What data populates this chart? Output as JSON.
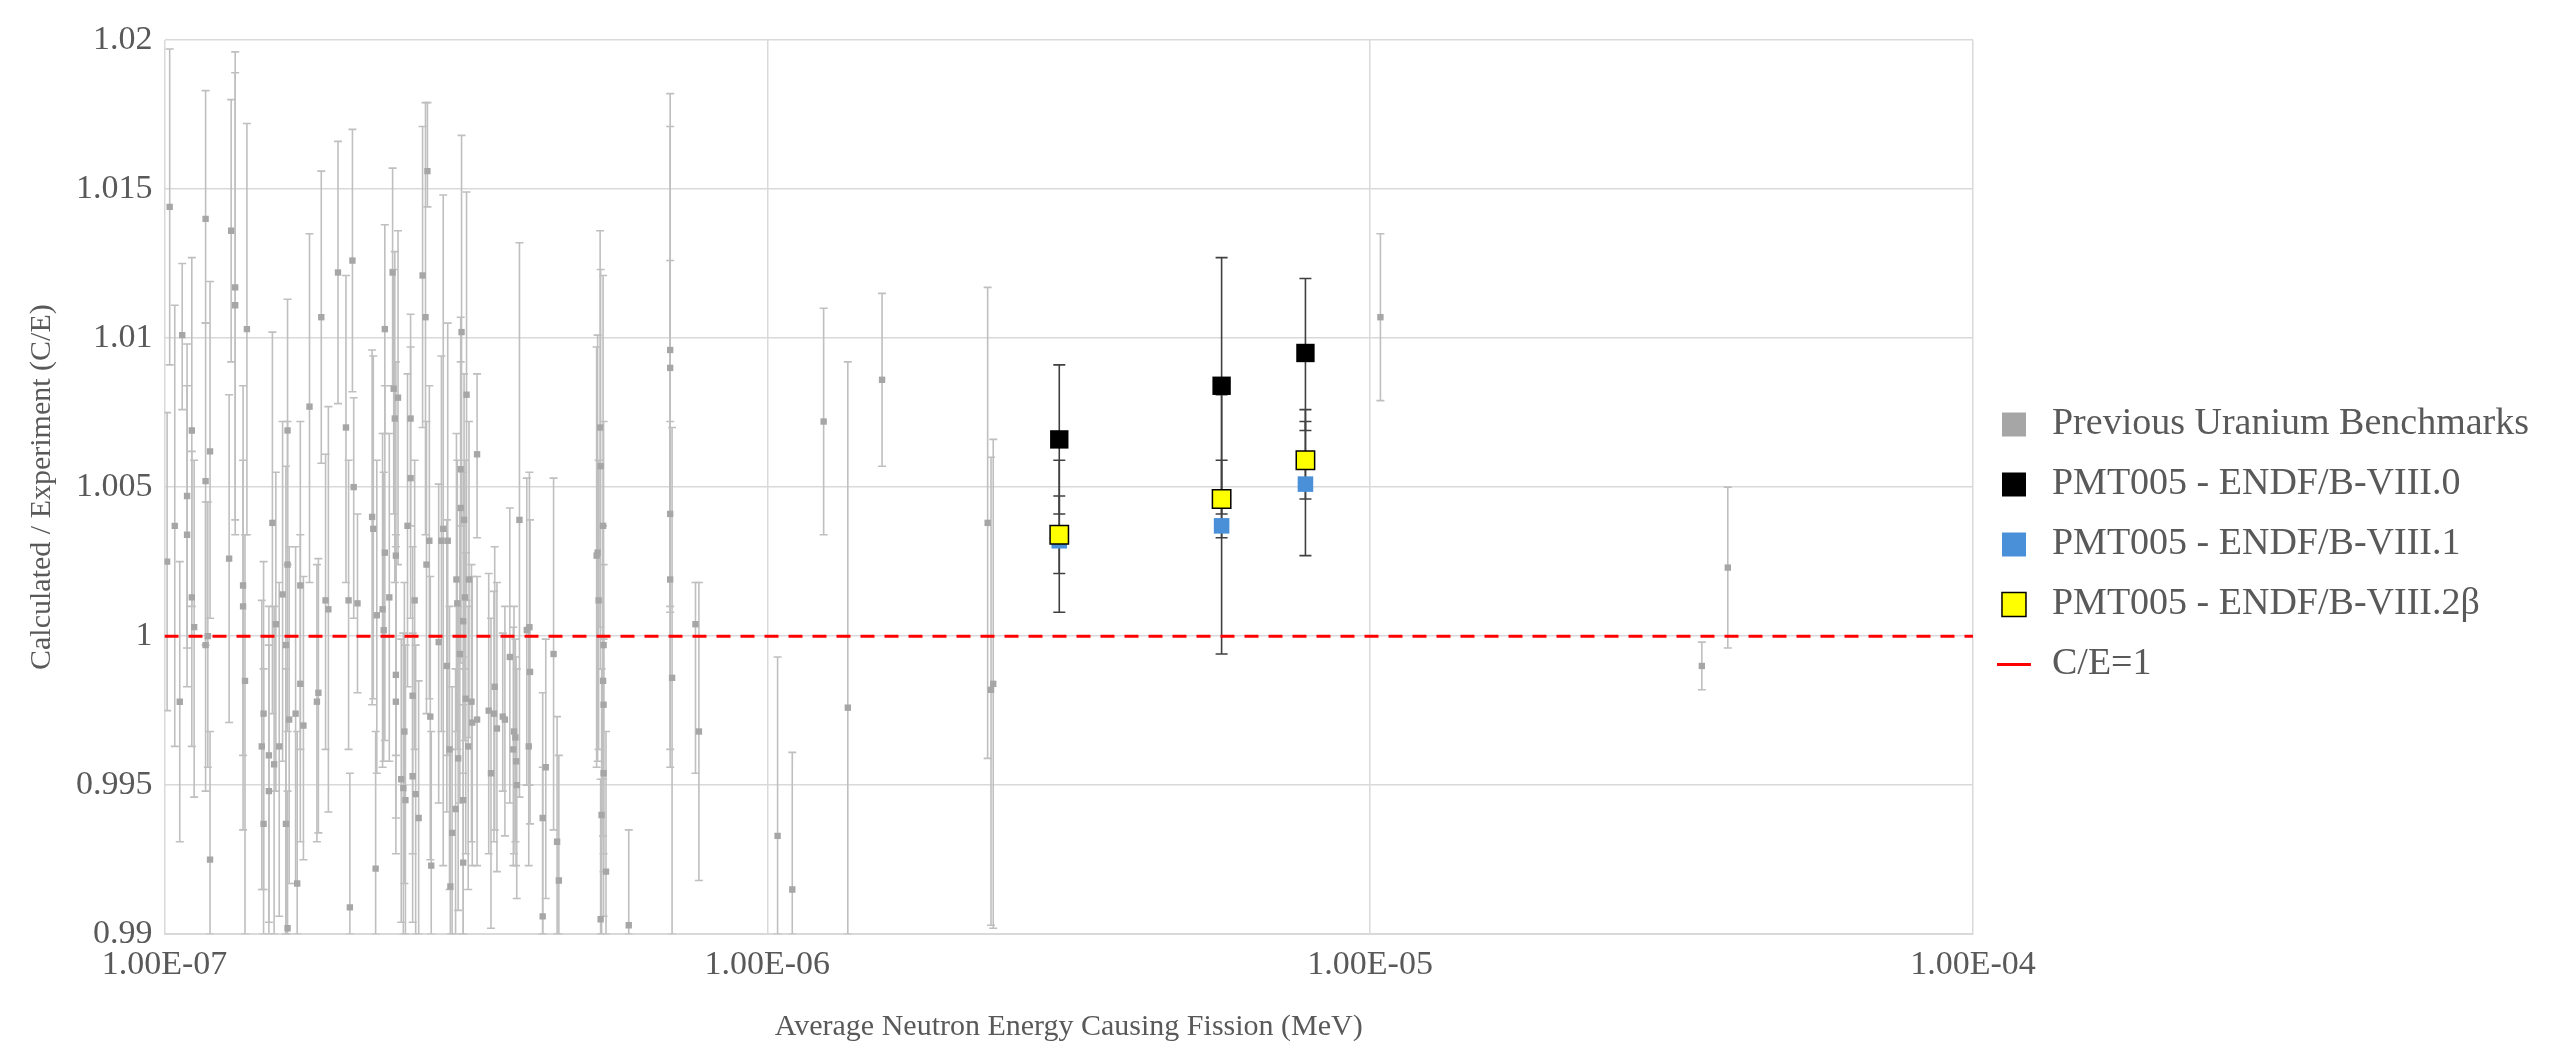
{
  "chart_data": {
    "type": "scatter",
    "xlabel": "Average Neutron Energy Causing Fission (MeV)",
    "ylabel": "Calculated / Experiment (C/E)",
    "log": "x",
    "grid": true,
    "legend": "right",
    "marker": "square",
    "xlim": [
      1e-07,
      0.0001
    ],
    "xticks": [
      {
        "value": 1e-07,
        "label": "1.00E-07"
      },
      {
        "value": 1e-06,
        "label": "1.00E-06"
      },
      {
        "value": 1e-05,
        "label": "1.00E-05"
      },
      {
        "value": 0.0001,
        "label": "1.00E-04"
      }
    ],
    "ylim": [
      0.99,
      1.02
    ],
    "yticks": [
      0.99,
      0.995,
      1,
      1.005,
      1.01,
      1.015,
      1.02
    ],
    "ref_lines": [
      {
        "axis": "y",
        "value": 1,
        "label": "C/E=1",
        "color": "#ff0000",
        "line_style": "dashed"
      }
    ],
    "series": [
      {
        "name": "Previous Uranium Benchmarks",
        "color": "#a6a6a6",
        "x": [
          1.01e-07,
          1.02e-07,
          1.04e-07,
          1.06e-07,
          1.07e-07,
          1.09e-07,
          1.09e-07,
          1.11e-07,
          1.11e-07,
          1.12e-07,
          1.17e-07,
          1.17e-07,
          1.17e-07,
          1.18e-07,
          1.19e-07,
          1.19e-07,
          1.28e-07,
          1.29e-07,
          1.31e-07,
          1.31e-07,
          1.35e-07,
          1.35e-07,
          1.36e-07,
          1.37e-07,
          1.45e-07,
          1.46e-07,
          1.46e-07,
          1.49e-07,
          1.49e-07,
          1.51e-07,
          1.52e-07,
          1.53e-07,
          1.55e-07,
          1.57e-07,
          1.59e-07,
          1.6e-07,
          1.6e-07,
          1.59e-07,
          1.6e-07,
          1.61e-07,
          1.65e-07,
          1.66e-07,
          1.68e-07,
          1.68e-07,
          1.7e-07,
          1.74e-07,
          1.79e-07,
          1.8e-07,
          1.82e-07,
          1.85e-07,
          1.87e-07,
          1.94e-07,
          2e-07,
          2.02e-07,
          2.03e-07,
          2.05e-07,
          2.06e-07,
          2.09e-07,
          2.21e-07,
          2.22e-07,
          2.24e-07,
          2.25e-07,
          2.3e-07,
          2.31e-07,
          2.32e-07,
          2.32e-07,
          2.36e-07,
          2.39e-07,
          2.4e-07,
          2.41e-07,
          2.42e-07,
          2.42e-07,
          2.42e-07,
          2.44e-07,
          2.47e-07,
          2.49e-07,
          2.5e-07,
          2.51e-07,
          2.53e-07,
          2.56e-07,
          2.56e-07,
          2.58e-07,
          2.58e-07,
          2.6e-07,
          2.61e-07,
          2.64e-07,
          2.68e-07,
          2.71e-07,
          2.72e-07,
          2.73e-07,
          2.75e-07,
          2.76e-07,
          2.77e-07,
          2.85e-07,
          2.88e-07,
          2.9e-07,
          2.94e-07,
          2.95e-07,
          2.97e-07,
          2.98e-07,
          3e-07,
          3.04e-07,
          3.05e-07,
          3.06e-07,
          3.07e-07,
          3.09e-07,
          3.1e-07,
          3.1e-07,
          3.11e-07,
          3.13e-07,
          3.13e-07,
          3.13e-07,
          3.14e-07,
          3.15e-07,
          3.16e-07,
          3.17e-07,
          3.19e-07,
          3.2e-07,
          3.23e-07,
          3.24e-07,
          3.3e-07,
          3.3e-07,
          3.45e-07,
          3.48e-07,
          3.52e-07,
          3.53e-07,
          3.56e-07,
          3.64e-07,
          3.67e-07,
          3.74e-07,
          3.79e-07,
          3.8e-07,
          3.83e-07,
          3.88e-07,
          3.84e-07,
          3.82e-07,
          3.99e-07,
          4.03e-07,
          4.04e-07,
          4.02e-07,
          4.24e-07,
          4.24e-07,
          4.29e-07,
          4.42e-07,
          4.48e-07,
          4.51e-07,
          5.21e-07,
          5.23e-07,
          5.25e-07,
          5.28e-07,
          5.29e-07,
          5.31e-07,
          5.34e-07,
          5.34e-07,
          5.35e-07,
          5.35e-07,
          5.35e-07,
          5.29e-07,
          5.4e-07,
          5.89e-07,
          6.9e-07,
          6.9e-07,
          6.9e-07,
          6.9e-07,
          6.95e-07,
          7.6e-07,
          7.7e-07,
          1.04e-06,
          1.1e-06,
          1.24e-06,
          1.36e-06,
          1.55e-06,
          2.32e-06,
          2.35e-06,
          2.37e-06,
          1.04e-05,
          3.55e-05,
          3.92e-05
        ],
        "values": [
          1.0025,
          1.0144,
          1.0037,
          0.9978,
          1.0101,
          1.0047,
          1.0034,
          1.0013,
          1.0069,
          1.0003,
          0.9997,
          1.014,
          1.0052,
          1,
          0.9925,
          1.0062,
          1.0026,
          1.0136,
          1.0117,
          1.0111,
          1.0017,
          1.001,
          0.9985,
          1.0103,
          0.9963,
          0.9974,
          0.9937,
          0.996,
          0.9948,
          1.0038,
          0.9957,
          1.0004,
          0.9963,
          1.0014,
          0.9997,
          1.0069,
          1.0024,
          0.9937,
          0.9902,
          0.9972,
          0.9974,
          0.9917,
          1.0017,
          0.9984,
          0.997,
          1.0077,
          0.9978,
          0.9981,
          1.0107,
          1.0012,
          1.0009,
          1.0122,
          1.007,
          1.0012,
          0.9909,
          1.0126,
          1.005,
          1.0011,
          1.004,
          1.0036,
          0.9922,
          1.0007,
          1.0009,
          1.0002,
          1.0103,
          1.0028,
          1.0013,
          1.0122,
          1.0083,
          1.0073,
          1.0027,
          0.9987,
          0.9978,
          1.008,
          0.9952,
          0.9949,
          0.9968,
          0.9945,
          1.0037,
          1.0073,
          1.0053,
          0.998,
          0.9953,
          1.0012,
          0.9947,
          0.9939,
          1.0121,
          1.0107,
          1.0024,
          1.0156,
          1.0032,
          0.9973,
          0.9923,
          0.9998,
          1.0032,
          1.0036,
          0.999,
          1.0032,
          0.9962,
          0.9916,
          0.9934,
          0.9942,
          1.0019,
          1.0011,
          0.9959,
          0.9994,
          1.0056,
          1.0043,
          1.0102,
          1.0005,
          0.9945,
          0.9924,
          1.0039,
          1.0013,
          0.9979,
          1.0081,
          0.9963,
          1.0019,
          0.9978,
          0.9971,
          1.0061,
          0.9972,
          0.9975,
          0.9954,
          0.9974,
          0.9983,
          0.9969,
          0.9973,
          0.9972,
          0.9993,
          0.9962,
          0.9968,
          0.9958,
          1.0039,
          0.995,
          0.9966,
          1.0002,
          1.0003,
          0.9988,
          0.9963,
          0.9939,
          0.9906,
          0.9956,
          0.9994,
          0.9931,
          0.9918,
          1.0027,
          1.0028,
          1.0012,
          1.007,
          1.0057,
          0.994,
          1.0037,
          0.9985,
          0.9977,
          0.9997,
          0.9954,
          0.9905,
          0.9921,
          0.9903,
          1.0096,
          1.009,
          1.0041,
          1.0019,
          0.9986,
          1.0004,
          0.9968,
          0.9933,
          0.9915,
          1.0072,
          0.9976,
          1.0086,
          1.0038,
          0.9982,
          0.9984,
          1.0107,
          0.999,
          1.0023
        ],
        "errors": [
          [
            0.9975,
            1.0075
          ],
          [
            1.0091,
            1.0197
          ],
          [
            0.9963,
            1.0111
          ],
          [
            0.9931,
            1.0025
          ],
          [
            1.0076,
            1.0125
          ],
          [
            0.9996,
            1.0098
          ],
          [
            0.9983,
            1.0084
          ],
          [
            0.9963,
            1.0062
          ],
          [
            1.001,
            1.0127
          ],
          [
            0.9946,
            1.0059
          ],
          [
            0.9948,
            1.0045
          ],
          [
            1.0105,
            1.0183
          ],
          [
            0.9997,
            1.0105
          ],
          [
            0.9956,
            1.0045
          ],
          [
            0.99,
            0.9968
          ],
          [
            1.0006,
            1.0119
          ],
          [
            0.9971,
            1.0081
          ],
          [
            1.0092,
            1.018
          ],
          [
            1.0039,
            1.0196
          ],
          [
            1.0034,
            1.0189
          ],
          [
            0.996,
            1.0084
          ],
          [
            0.9935,
            1.0059
          ],
          [
            0.99,
            1.0034
          ],
          [
            1.0034,
            1.0172
          ],
          [
            0.9915,
            1.0012
          ],
          [
            0.9915,
            1.0025
          ],
          [
            0.99,
            0.9989
          ],
          [
            0.9904,
            1.001
          ],
          [
            0.99,
            0.9997
          ],
          [
            0.9974,
            1.0102
          ],
          [
            0.99,
            1.001
          ],
          [
            0.9948,
            1.0055
          ],
          [
            0.9906,
            1.0018
          ],
          [
            0.9958,
            1.0072
          ],
          [
            0.99,
            1.0057
          ],
          [
            1.0024,
            1.0113
          ],
          [
            0.9968,
            1.0072
          ],
          [
            0.99,
            0.9989
          ],
          [
            0.99,
            0.9948
          ],
          [
            0.9917,
            1.003
          ],
          [
            0.9917,
            1.003
          ],
          [
            0.99,
            0.9968
          ],
          [
            0.9962,
            1.0072
          ],
          [
            0.9931,
            1.0034
          ],
          [
            0.9925,
            1.002
          ],
          [
            1.0018,
            1.0135
          ],
          [
            0.9931,
            1.0024
          ],
          [
            0.9934,
            1.0026
          ],
          [
            1.0058,
            1.0156
          ],
          [
            0.9962,
            1.0061
          ],
          [
            0.9941,
            1.0077
          ],
          [
            1.0078,
            1.0166
          ],
          [
            1.0018,
            1.0121
          ],
          [
            0.9962,
            1.0059
          ],
          [
            0.99,
            0.9954
          ],
          [
            1.0082,
            1.017
          ],
          [
            1.0006,
            1.008
          ],
          [
            0.9981,
            1.0041
          ],
          [
            0.9977,
            1.0096
          ],
          [
            0.9979,
            1.0094
          ],
          [
            0.99,
            0.9968
          ],
          [
            0.9954,
            1.0059
          ],
          [
            0.9956,
            1.0068
          ],
          [
            0.9958,
            1.0055
          ],
          [
            1.0068,
            1.0138
          ],
          [
            0.9965,
            1.0084
          ],
          [
            0.9958,
            1.0068
          ],
          [
            1.0084,
            1.0157
          ],
          [
            1.0041,
            1.0123
          ],
          [
            1.0018,
            1.0129
          ],
          [
            0.996,
            1.0092
          ],
          [
            0.9939,
            1.0034
          ],
          [
            0.9927,
            1.003
          ],
          [
            1.0024,
            1.0136
          ],
          [
            0.9904,
            0.9999
          ],
          [
            0.99,
            1.0001
          ],
          [
            0.9917,
            1.0018
          ],
          [
            0.99,
            0.9997
          ],
          [
            0.9983,
            1.0088
          ],
          [
            1.0037,
            1.0108
          ],
          [
            1.0006,
            1.0097
          ],
          [
            0.9927,
            1.003
          ],
          [
            0.9904,
            1.0001
          ],
          [
            0.9962,
            1.0059
          ],
          [
            0.99,
            0.9997
          ],
          [
            0.99,
            0.9985
          ],
          [
            1.007,
            1.0171
          ],
          [
            1.0034,
            1.0179
          ],
          [
            0.9974,
            1.0072
          ],
          [
            1.0144,
            1.0179
          ],
          [
            0.9979,
            1.0084
          ],
          [
            0.9925,
            1.002
          ],
          [
            0.99,
            0.9968
          ],
          [
            0.9944,
            1.0051
          ],
          [
            0.9968,
            1.0094
          ],
          [
            0.9923,
            1.0148
          ],
          [
            0.9941,
            1.0039
          ],
          [
            0.996,
            1.0105
          ],
          [
            0.9915,
            1.001
          ],
          [
            0.99,
            0.9962
          ],
          [
            0.99,
            0.9983
          ],
          [
            0.99,
            0.9989
          ],
          [
            0.9968,
            1.0068
          ],
          [
            0.9962,
            1.0059
          ],
          [
            0.9908,
            1.001
          ],
          [
            0.9944,
            1.0043
          ],
          [
            1.0006,
            1.0107
          ],
          [
            0.9991,
            1.0092
          ],
          [
            1.0037,
            1.0168
          ],
          [
            0.9954,
            1.0055
          ],
          [
            0.99,
            0.9993
          ],
          [
            0.99,
            0.9977
          ],
          [
            0.9989,
            1.0088
          ],
          [
            0.9965,
            1.0059
          ],
          [
            0.9927,
            1.0028
          ],
          [
            1.0012,
            1.0149
          ],
          [
            0.9915,
            1.001
          ],
          [
            0.9966,
            1.0072
          ],
          [
            0.9931,
            1.0024
          ],
          [
            0.9923,
            1.002
          ],
          [
            1.0033,
            1.0088
          ],
          [
            0.9923,
            1.002
          ],
          [
            0.9927,
            1.0021
          ],
          [
            0.9902,
            1.0006
          ],
          [
            0.9931,
            1.0015
          ],
          [
            0.9935,
            1.003
          ],
          [
            0.9921,
            1.0018
          ],
          [
            0.9948,
            1.0001
          ],
          [
            0.9933,
            1.001
          ],
          [
            0.9944,
            1.0043
          ],
          [
            0.9923,
            1.0003
          ],
          [
            0.9927,
            1.001
          ],
          [
            0.9923,
            0.9993
          ],
          [
            0.9946,
            1.0132
          ],
          [
            0.9912,
            0.9989
          ],
          [
            0.9931,
            0.9999
          ],
          [
            0.995,
            1.0053
          ],
          [
            0.995,
            1.0055
          ],
          [
            0.9937,
            1.0039
          ],
          [
            0.9923,
            1.0003
          ],
          [
            0.99,
            0.9981
          ],
          [
            0.99,
            0.9956
          ],
          [
            0.9912,
            0.9999
          ],
          [
            0.9935,
            1.0053
          ],
          [
            0.99,
            0.9973
          ],
          [
            0.99,
            0.996
          ],
          [
            0.9956,
            1.0097
          ],
          [
            0.9958,
            1.0101
          ],
          [
            0.9962,
            1.0059
          ],
          [
            1.0003,
            1.0136
          ],
          [
            0.9989,
            1.0123
          ],
          [
            0.99,
            0.9989
          ],
          [
            0.9952,
            1.0121
          ],
          [
            0.9933,
            1.0037
          ],
          [
            0.9927,
            1.0024
          ],
          [
            0.9921,
            1.0072
          ],
          [
            0.9906,
            0.9999
          ],
          [
            0.99,
            0.9952
          ],
          [
            0.99,
            0.9968
          ],
          [
            0.99,
            0.9935
          ],
          [
            1.001,
            1.0182
          ],
          [
            1.0008,
            1.0171
          ],
          [
            0.9956,
            1.0126
          ],
          [
            0.9962,
            1.0072
          ],
          [
            0.99,
            1.007
          ],
          [
            0.9954,
            1.0018
          ],
          [
            0.9918,
            1.0018
          ],
          [
            0.99,
            0.9993
          ],
          [
            0.99,
            0.9961
          ],
          [
            1.0034,
            1.011
          ],
          [
            0.99,
            1.0092
          ],
          [
            1.0057,
            1.0115
          ],
          [
            0.9959,
            1.0117
          ],
          [
            0.9903,
            1.006
          ],
          [
            0.9902,
            1.0066
          ],
          [
            1.0079,
            1.0135
          ],
          [
            0.9982,
            0.9998
          ],
          [
            0.9996,
            1.005
          ]
        ]
      },
      {
        "name": "PMT005 - ENDF/B-VIII.0",
        "color": "#000000",
        "x": [
          3.05e-06,
          5.67e-06,
          7.81e-06
        ],
        "values": [
          1.0066,
          1.0084,
          1.0095
        ],
        "errors": [
          [
            1.0041,
            1.0091
          ],
          [
            1.0041,
            1.0127
          ],
          [
            1.0069,
            1.012
          ]
        ]
      },
      {
        "name": "PMT005 - ENDF/B-VIII.1",
        "color": "#4a90d9",
        "x": [
          3.05e-06,
          5.67e-06,
          7.81e-06
        ],
        "values": [
          1.0032,
          1.0037,
          1.0051
        ],
        "errors": [
          [
            1.0021,
            1.0047
          ],
          [
            0.9994,
            1.0081
          ],
          [
            1.0027,
            1.0076
          ]
        ]
      },
      {
        "name": "PMT005 - ENDF/B-VIII.2β",
        "color": "#ffff00",
        "x": [
          3.05e-06,
          5.67e-06,
          7.81e-06
        ],
        "values": [
          1.0034,
          1.0046,
          1.0059
        ],
        "errors": [
          [
            1.0008,
            1.0059
          ],
          [
            1.0033,
            1.0059
          ],
          [
            1.0046,
            1.0072
          ]
        ]
      }
    ]
  }
}
